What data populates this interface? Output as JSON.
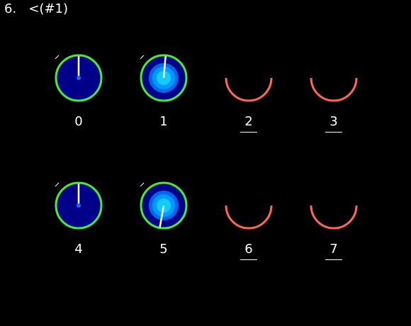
{
  "title": "6.   <(#1)",
  "colors": {
    "background": "#000000",
    "ring": "#44ee33",
    "dial_face": "#000088",
    "pointer": "#ffffff",
    "hub": "#2266ee",
    "glow_outer": "#0066ee",
    "glow_mid": "#0099ff",
    "glow_inner": "#11ccff",
    "cup": "#ff6655",
    "label": "#ffffff"
  },
  "cells": [
    {
      "label": "0",
      "kind": "dial",
      "glow": false,
      "pointer_angle_deg": 0,
      "selected": false
    },
    {
      "label": "1",
      "kind": "dial",
      "glow": true,
      "pointer_angle_deg": 5,
      "selected": false
    },
    {
      "label": "2",
      "kind": "cup",
      "selected": true
    },
    {
      "label": "3",
      "kind": "cup",
      "selected": true
    },
    {
      "label": "4",
      "kind": "dial",
      "glow": false,
      "pointer_angle_deg": 0,
      "selected": false
    },
    {
      "label": "5",
      "kind": "dial",
      "glow": true,
      "pointer_angle_deg": 190,
      "selected": false
    },
    {
      "label": "6",
      "kind": "cup",
      "selected": true
    },
    {
      "label": "7",
      "kind": "cup",
      "selected": true
    }
  ]
}
